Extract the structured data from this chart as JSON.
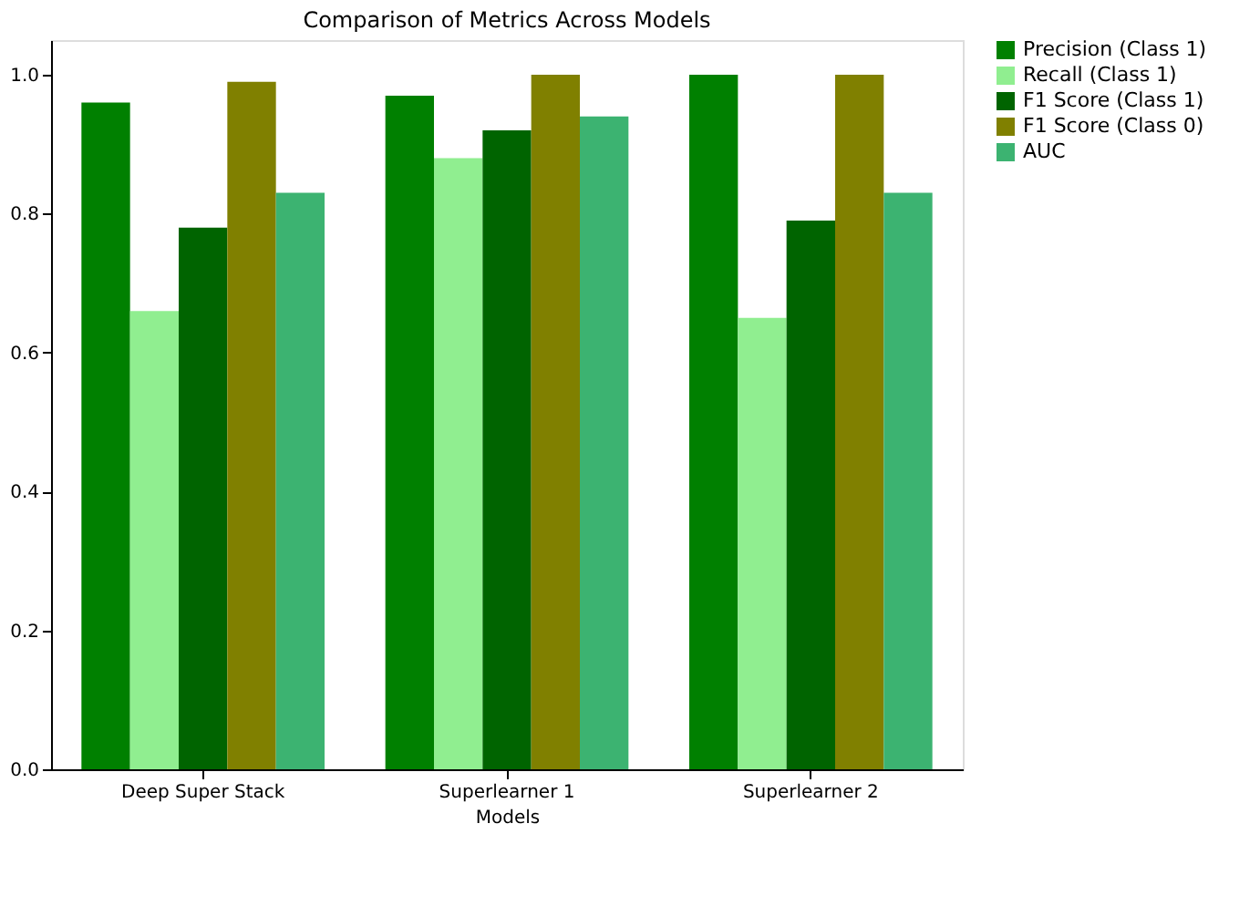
{
  "chart_data": {
    "type": "bar",
    "title": "Comparison of Metrics Across Models",
    "xlabel": "Models",
    "categories": [
      "Deep Super Stack",
      "Superlearner 1",
      "Superlearner 2"
    ],
    "series": [
      {
        "name": "Precision (Class 1)",
        "color": "#008000",
        "values": [
          0.96,
          0.97,
          1.0
        ]
      },
      {
        "name": "Recall (Class 1)",
        "color": "#90ee90",
        "values": [
          0.66,
          0.88,
          0.65
        ]
      },
      {
        "name": "F1 Score (Class 1)",
        "color": "#006400",
        "values": [
          0.78,
          0.92,
          0.79
        ]
      },
      {
        "name": "F1 Score (Class 0)",
        "color": "#808000",
        "values": [
          0.99,
          1.0,
          1.0
        ]
      },
      {
        "name": "AUC",
        "color": "#3cb371",
        "values": [
          0.83,
          0.94,
          0.83
        ]
      }
    ],
    "ylim": [
      0,
      1.05
    ],
    "yticks": [
      {
        "value": 0,
        "label": "0.0"
      },
      {
        "value": 0.2,
        "label": "0.2"
      },
      {
        "value": 0.4,
        "label": "0.4"
      },
      {
        "value": 0.6,
        "label": "0.6"
      },
      {
        "value": 0.8,
        "label": "0.8"
      },
      {
        "value": 1.0,
        "label": "1.0"
      }
    ],
    "grid": false,
    "legend": "right"
  }
}
